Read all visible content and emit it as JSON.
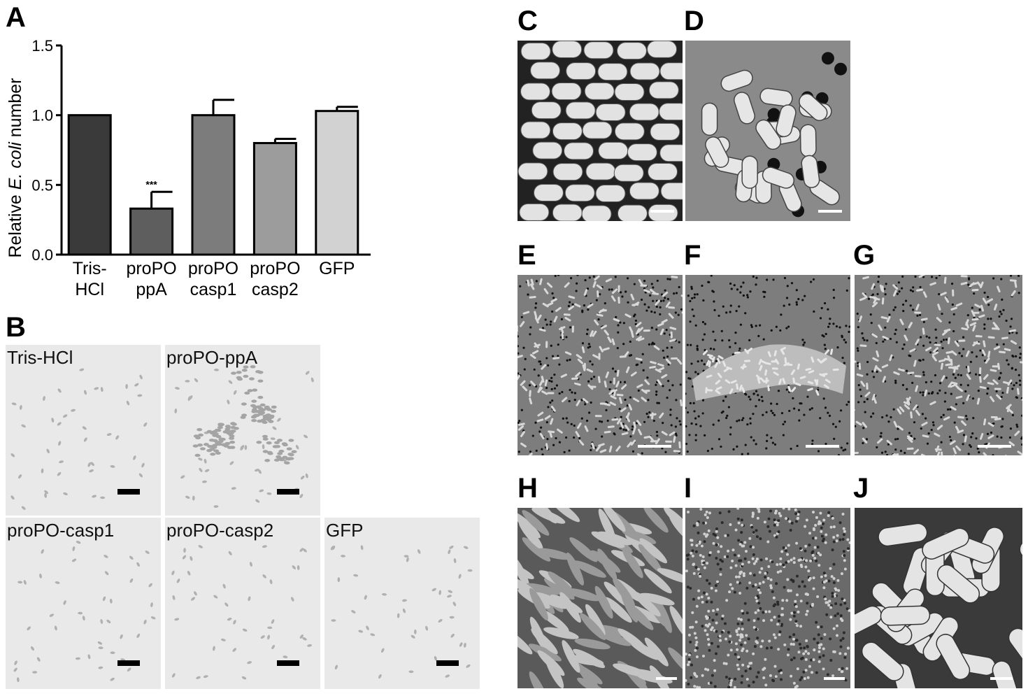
{
  "panel_labels": {
    "A": "A",
    "B": "B",
    "C": "C",
    "D": "D",
    "E": "E",
    "F": "F",
    "G": "G",
    "H": "H",
    "I": "I",
    "J": "J"
  },
  "chart_data": {
    "type": "bar",
    "ylabel_prefix": "Relative ",
    "ylabel_italic": "E. coli",
    "ylabel_suffix": " number",
    "ylim": [
      0,
      1.5
    ],
    "yticks": [
      "0.0",
      "0.5",
      "1.0",
      "1.5"
    ],
    "ytick_values": [
      0,
      0.5,
      1.0,
      1.5
    ],
    "categories": [
      {
        "line1": "Tris-",
        "line2": "HCl"
      },
      {
        "line1": "proPO",
        "line2": "ppA"
      },
      {
        "line1": "proPO",
        "line2": "casp1"
      },
      {
        "line1": "proPO",
        "line2": "casp2"
      },
      {
        "line1": "GFP",
        "line2": ""
      }
    ],
    "values": [
      1.0,
      0.33,
      1.0,
      0.8,
      1.03
    ],
    "errors": [
      0,
      0.12,
      0.11,
      0.03,
      0.03
    ],
    "colors": [
      "#3a3a3a",
      "#5e5e5e",
      "#7c7c7c",
      "#9c9c9c",
      "#d2d2d2"
    ],
    "annotations": [
      "",
      "***",
      "",
      "",
      ""
    ]
  },
  "panel_b": {
    "labels": [
      "Tris-HCl",
      "proPO-ppA",
      "proPO-casp1",
      "proPO-casp2",
      "GFP"
    ]
  }
}
